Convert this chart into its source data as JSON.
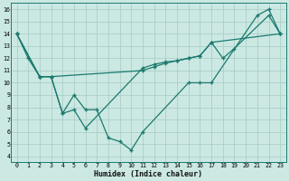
{
  "xlabel": "Humidex (Indice chaleur)",
  "xlim": [
    -0.5,
    23.5
  ],
  "ylim": [
    3.5,
    16.5
  ],
  "xticks": [
    0,
    1,
    2,
    3,
    4,
    5,
    6,
    7,
    8,
    9,
    10,
    11,
    12,
    13,
    14,
    15,
    16,
    17,
    18,
    19,
    20,
    21,
    22,
    23
  ],
  "yticks": [
    4,
    5,
    6,
    7,
    8,
    9,
    10,
    11,
    12,
    13,
    14,
    15,
    16
  ],
  "background_color": "#cce8e3",
  "grid_color": "#aacfc8",
  "line_color": "#1a7a6e",
  "series1_x": [
    0,
    1,
    2,
    3,
    4,
    5,
    6,
    7,
    8,
    9,
    10,
    11,
    15,
    16,
    17,
    21,
    22,
    23
  ],
  "series1_y": [
    14,
    12,
    10.5,
    10.5,
    7.5,
    9,
    7.8,
    7.8,
    5.5,
    5.2,
    4.5,
    6.0,
    10,
    10,
    10,
    15.5,
    16,
    14
  ],
  "series2_x": [
    0,
    2,
    3,
    4,
    5,
    6,
    11,
    12,
    13,
    14,
    15,
    16,
    17,
    18,
    19,
    22,
    23
  ],
  "series2_y": [
    14,
    10.5,
    10.5,
    7.5,
    7.8,
    6.3,
    11.2,
    11.5,
    11.7,
    11.8,
    12.0,
    12.2,
    13.3,
    12.0,
    12.8,
    15.5,
    14
  ],
  "series3_x": [
    0,
    2,
    3,
    11,
    12,
    13,
    14,
    15,
    16,
    17,
    23
  ],
  "series3_y": [
    14,
    10.5,
    10.5,
    11.0,
    11.3,
    11.6,
    11.8,
    12.0,
    12.2,
    13.3,
    14
  ]
}
